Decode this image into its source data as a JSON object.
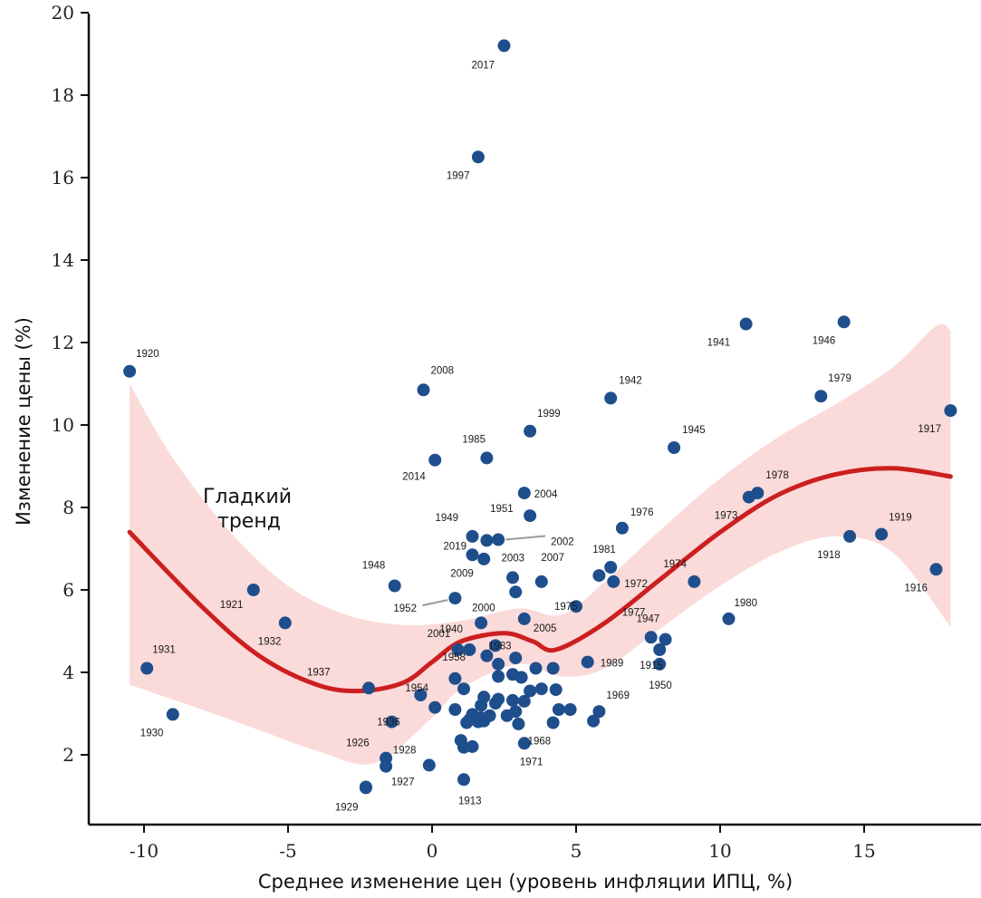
{
  "chart_data": {
    "type": "scatter",
    "xlabel": "Среднее изменение цен (уровень инфляции ИПЦ, %)",
    "ylabel": "Изменение цены (%)",
    "xlim": [
      -12,
      19
    ],
    "ylim": [
      0.5,
      20.2
    ],
    "x_ticks": [
      -10,
      -5,
      0,
      5,
      10,
      15
    ],
    "y_ticks": [
      2,
      4,
      6,
      8,
      10,
      12,
      14,
      16,
      18,
      20
    ],
    "x_tick_labels": [
      "-10",
      "-5",
      "0",
      "5",
      "10",
      "15"
    ],
    "y_tick_labels": [
      "2",
      "4",
      "6",
      "8",
      "10",
      "12",
      "14",
      "16",
      "18",
      "20"
    ],
    "colors": {
      "points": "#1f4e8c",
      "trend": "#cc1f1f",
      "band": "#fbdada",
      "axis": "#111111"
    },
    "trend_label_lines": [
      "Гладкий",
      "тренд"
    ],
    "trend_curve": [
      {
        "x": -10.5,
        "y": 7.4
      },
      {
        "x": -8,
        "y": 5.6
      },
      {
        "x": -6,
        "y": 4.4
      },
      {
        "x": -4,
        "y": 3.7
      },
      {
        "x": -2.5,
        "y": 3.55
      },
      {
        "x": -1,
        "y": 3.75
      },
      {
        "x": 0,
        "y": 4.25
      },
      {
        "x": 1,
        "y": 4.75
      },
      {
        "x": 2.5,
        "y": 4.95
      },
      {
        "x": 3.5,
        "y": 4.75
      },
      {
        "x": 4.3,
        "y": 4.55
      },
      {
        "x": 6,
        "y": 5.2
      },
      {
        "x": 8,
        "y": 6.3
      },
      {
        "x": 10,
        "y": 7.4
      },
      {
        "x": 12,
        "y": 8.3
      },
      {
        "x": 14,
        "y": 8.8
      },
      {
        "x": 16,
        "y": 8.95
      },
      {
        "x": 18,
        "y": 8.75
      }
    ],
    "band_upper": [
      {
        "x": -10.5,
        "y": 11.0
      },
      {
        "x": -9,
        "y": 9.2
      },
      {
        "x": -7,
        "y": 7.4
      },
      {
        "x": -5,
        "y": 6.1
      },
      {
        "x": -3,
        "y": 5.4
      },
      {
        "x": -1,
        "y": 5.15
      },
      {
        "x": 1,
        "y": 5.25
      },
      {
        "x": 3,
        "y": 5.55
      },
      {
        "x": 4.5,
        "y": 5.4
      },
      {
        "x": 6,
        "y": 6.2
      },
      {
        "x": 8,
        "y": 7.5
      },
      {
        "x": 10,
        "y": 8.7
      },
      {
        "x": 12,
        "y": 9.7
      },
      {
        "x": 14,
        "y": 10.5
      },
      {
        "x": 16,
        "y": 11.4
      },
      {
        "x": 17.5,
        "y": 12.4
      },
      {
        "x": 18,
        "y": 12.3
      }
    ],
    "band_lower": [
      {
        "x": -10.5,
        "y": 3.7
      },
      {
        "x": -8,
        "y": 3.1
      },
      {
        "x": -6,
        "y": 2.6
      },
      {
        "x": -4,
        "y": 2.1
      },
      {
        "x": -2,
        "y": 1.8
      },
      {
        "x": 0,
        "y": 2.9
      },
      {
        "x": 1,
        "y": 3.6
      },
      {
        "x": 3,
        "y": 4.2
      },
      {
        "x": 4.5,
        "y": 3.9
      },
      {
        "x": 6,
        "y": 4.1
      },
      {
        "x": 8,
        "y": 5.1
      },
      {
        "x": 10,
        "y": 6.1
      },
      {
        "x": 12,
        "y": 6.9
      },
      {
        "x": 14,
        "y": 7.3
      },
      {
        "x": 16,
        "y": 6.9
      },
      {
        "x": 18,
        "y": 5.1
      }
    ],
    "points": [
      {
        "x": 2.5,
        "y": 19.2,
        "label": "2017"
      },
      {
        "x": 1.6,
        "y": 16.5,
        "label": "1997"
      },
      {
        "x": 10.9,
        "y": 12.45,
        "label": "1941"
      },
      {
        "x": 14.3,
        "y": 12.5,
        "label": "1946"
      },
      {
        "x": -10.5,
        "y": 11.3,
        "label": "1920"
      },
      {
        "x": -0.3,
        "y": 10.85,
        "label": "2008"
      },
      {
        "x": 6.2,
        "y": 10.65,
        "label": "1942"
      },
      {
        "x": 13.5,
        "y": 10.7,
        "label": "1979"
      },
      {
        "x": 18.0,
        "y": 10.35,
        "label": "1917"
      },
      {
        "x": 3.4,
        "y": 9.85,
        "label": "1999"
      },
      {
        "x": 8.4,
        "y": 9.45,
        "label": "1945"
      },
      {
        "x": 0.1,
        "y": 9.15,
        "label": "2014"
      },
      {
        "x": 1.9,
        "y": 9.2,
        "label": "1985"
      },
      {
        "x": 3.2,
        "y": 8.35,
        "label": "2004"
      },
      {
        "x": 11.3,
        "y": 8.35,
        "label": "1978"
      },
      {
        "x": 11.0,
        "y": 8.25,
        "label": "1973"
      },
      {
        "x": 3.4,
        "y": 7.8,
        "label": "1951"
      },
      {
        "x": 6.6,
        "y": 7.5,
        "label": "1976"
      },
      {
        "x": 1.4,
        "y": 7.3,
        "label": "1949"
      },
      {
        "x": 1.9,
        "y": 7.2,
        "label": "2019"
      },
      {
        "x": 2.3,
        "y": 7.22,
        "label": "2002"
      },
      {
        "x": 14.5,
        "y": 7.3,
        "label": "1918"
      },
      {
        "x": 15.6,
        "y": 7.35,
        "label": "1919"
      },
      {
        "x": 1.4,
        "y": 6.85,
        "label": "2003"
      },
      {
        "x": 1.8,
        "y": 6.75,
        "label": ""
      },
      {
        "x": 6.2,
        "y": 6.55,
        "label": "1981"
      },
      {
        "x": 5.8,
        "y": 6.35,
        "label": "2007"
      },
      {
        "x": 2.8,
        "y": 6.3,
        "label": ""
      },
      {
        "x": 3.8,
        "y": 6.2,
        "label": ""
      },
      {
        "x": 6.3,
        "y": 6.2,
        "label": "1972"
      },
      {
        "x": 9.1,
        "y": 6.2,
        "label": "1974"
      },
      {
        "x": -1.3,
        "y": 6.1,
        "label": "1948"
      },
      {
        "x": -6.2,
        "y": 6.0,
        "label": "1921"
      },
      {
        "x": 2.9,
        "y": 5.95,
        "label": "2009"
      },
      {
        "x": 0.8,
        "y": 5.8,
        "label": "1952"
      },
      {
        "x": 5.0,
        "y": 5.6,
        "label": "1975"
      },
      {
        "x": 3.2,
        "y": 5.3,
        "label": "2005"
      },
      {
        "x": 10.3,
        "y": 5.3,
        "label": "1980"
      },
      {
        "x": 17.5,
        "y": 6.5,
        "label": "1916"
      },
      {
        "x": -5.1,
        "y": 5.2,
        "label": "1932"
      },
      {
        "x": 1.7,
        "y": 5.2,
        "label": "2000"
      },
      {
        "x": 7.6,
        "y": 4.85,
        "label": "1977"
      },
      {
        "x": 8.1,
        "y": 4.8,
        "label": "1947"
      },
      {
        "x": 2.2,
        "y": 4.65,
        "label": "1983"
      },
      {
        "x": 0.9,
        "y": 4.55,
        "label": "2001"
      },
      {
        "x": 1.3,
        "y": 4.55,
        "label": "1940"
      },
      {
        "x": 7.9,
        "y": 4.55,
        "label": "1915"
      },
      {
        "x": 1.9,
        "y": 4.4,
        "label": "1958"
      },
      {
        "x": 2.9,
        "y": 4.35,
        "label": ""
      },
      {
        "x": 5.4,
        "y": 4.25,
        "label": "1989"
      },
      {
        "x": 7.9,
        "y": 4.2,
        "label": "1950"
      },
      {
        "x": 2.3,
        "y": 4.2,
        "label": ""
      },
      {
        "x": 3.6,
        "y": 4.1,
        "label": ""
      },
      {
        "x": 4.2,
        "y": 4.1,
        "label": ""
      },
      {
        "x": -9.9,
        "y": 4.1,
        "label": "1931"
      },
      {
        "x": 2.8,
        "y": 3.95,
        "label": ""
      },
      {
        "x": 2.3,
        "y": 3.9,
        "label": ""
      },
      {
        "x": 3.1,
        "y": 3.88,
        "label": ""
      },
      {
        "x": 0.8,
        "y": 3.85,
        "label": "1954"
      },
      {
        "x": -2.2,
        "y": 3.62,
        "label": "1937"
      },
      {
        "x": 1.1,
        "y": 3.6,
        "label": ""
      },
      {
        "x": 3.8,
        "y": 3.6,
        "label": ""
      },
      {
        "x": 4.3,
        "y": 3.58,
        "label": ""
      },
      {
        "x": 3.4,
        "y": 3.55,
        "label": ""
      },
      {
        "x": -0.4,
        "y": 3.45,
        "label": ""
      },
      {
        "x": 1.8,
        "y": 3.4,
        "label": ""
      },
      {
        "x": 2.3,
        "y": 3.35,
        "label": ""
      },
      {
        "x": 2.8,
        "y": 3.32,
        "label": ""
      },
      {
        "x": 3.2,
        "y": 3.3,
        "label": ""
      },
      {
        "x": 2.2,
        "y": 3.25,
        "label": ""
      },
      {
        "x": 1.7,
        "y": 3.2,
        "label": ""
      },
      {
        "x": 0.1,
        "y": 3.15,
        "label": "1936"
      },
      {
        "x": 0.8,
        "y": 3.1,
        "label": ""
      },
      {
        "x": 4.4,
        "y": 3.1,
        "label": ""
      },
      {
        "x": 4.8,
        "y": 3.1,
        "label": ""
      },
      {
        "x": 5.8,
        "y": 3.05,
        "label": "1969"
      },
      {
        "x": 2.9,
        "y": 3.05,
        "label": ""
      },
      {
        "x": -9.0,
        "y": 2.98,
        "label": "1930"
      },
      {
        "x": 1.4,
        "y": 2.98,
        "label": ""
      },
      {
        "x": 2.0,
        "y": 2.95,
        "label": ""
      },
      {
        "x": 2.6,
        "y": 2.95,
        "label": ""
      },
      {
        "x": 1.7,
        "y": 2.9,
        "label": ""
      },
      {
        "x": 1.3,
        "y": 2.85,
        "label": ""
      },
      {
        "x": 1.8,
        "y": 2.82,
        "label": ""
      },
      {
        "x": 5.6,
        "y": 2.82,
        "label": ""
      },
      {
        "x": -1.4,
        "y": 2.8,
        "label": ""
      },
      {
        "x": 1.6,
        "y": 2.8,
        "label": ""
      },
      {
        "x": 1.2,
        "y": 2.78,
        "label": ""
      },
      {
        "x": 4.2,
        "y": 2.78,
        "label": "1968"
      },
      {
        "x": 3.0,
        "y": 2.75,
        "label": ""
      },
      {
        "x": 1.0,
        "y": 2.35,
        "label": ""
      },
      {
        "x": 3.2,
        "y": 2.28,
        "label": "1971"
      },
      {
        "x": 1.4,
        "y": 2.2,
        "label": ""
      },
      {
        "x": 1.1,
        "y": 2.18,
        "label": ""
      },
      {
        "x": -1.6,
        "y": 1.92,
        "label": "1926"
      },
      {
        "x": -0.1,
        "y": 1.75,
        "label": "1928"
      },
      {
        "x": -1.6,
        "y": 1.72,
        "label": ""
      },
      {
        "x": 1.1,
        "y": 1.4,
        "label": "1913"
      },
      {
        "x": -2.3,
        "y": 1.22,
        "label": "1927"
      },
      {
        "x": -2.3,
        "y": 1.2,
        "label": "1929"
      }
    ],
    "label_offsets_note": ""
  }
}
